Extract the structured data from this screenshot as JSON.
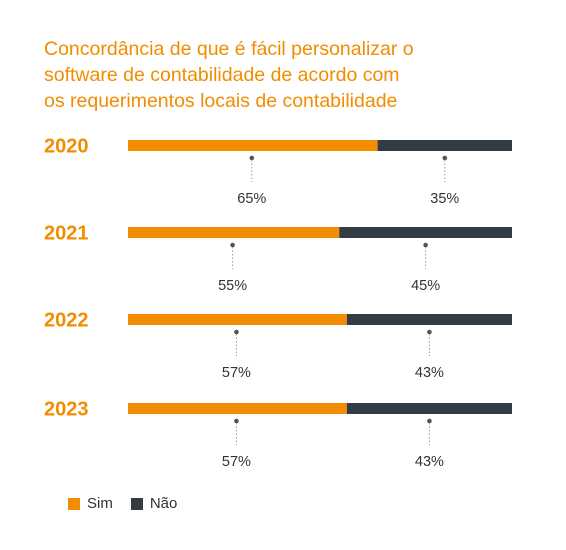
{
  "chart_data": {
    "type": "bar",
    "stacked": "percent",
    "orientation": "horizontal",
    "title_lines": [
      "Concordância de que é fácil personalizar o",
      "software de contabilidade de acordo com",
      "os requerimentos locais de contabilidade"
    ],
    "categories": [
      "2020",
      "2021",
      "2022",
      "2023"
    ],
    "series": [
      {
        "name": "Sim",
        "values": [
          65,
          55,
          57,
          57
        ],
        "labels": [
          "65%",
          "55%",
          "57%",
          "57%"
        ],
        "color": "#f28c00"
      },
      {
        "name": "Não",
        "values": [
          35,
          45,
          43,
          43
        ],
        "labels": [
          "35%",
          "45%",
          "43%",
          "43%"
        ],
        "color": "#343c43"
      }
    ],
    "xlim": [
      0,
      100
    ],
    "legend_position": "bottom-left",
    "grid": false
  },
  "colors": {
    "title": "#f28c00",
    "category_label": "#f28c00",
    "value_label": "#333333",
    "leader": "#555555"
  }
}
